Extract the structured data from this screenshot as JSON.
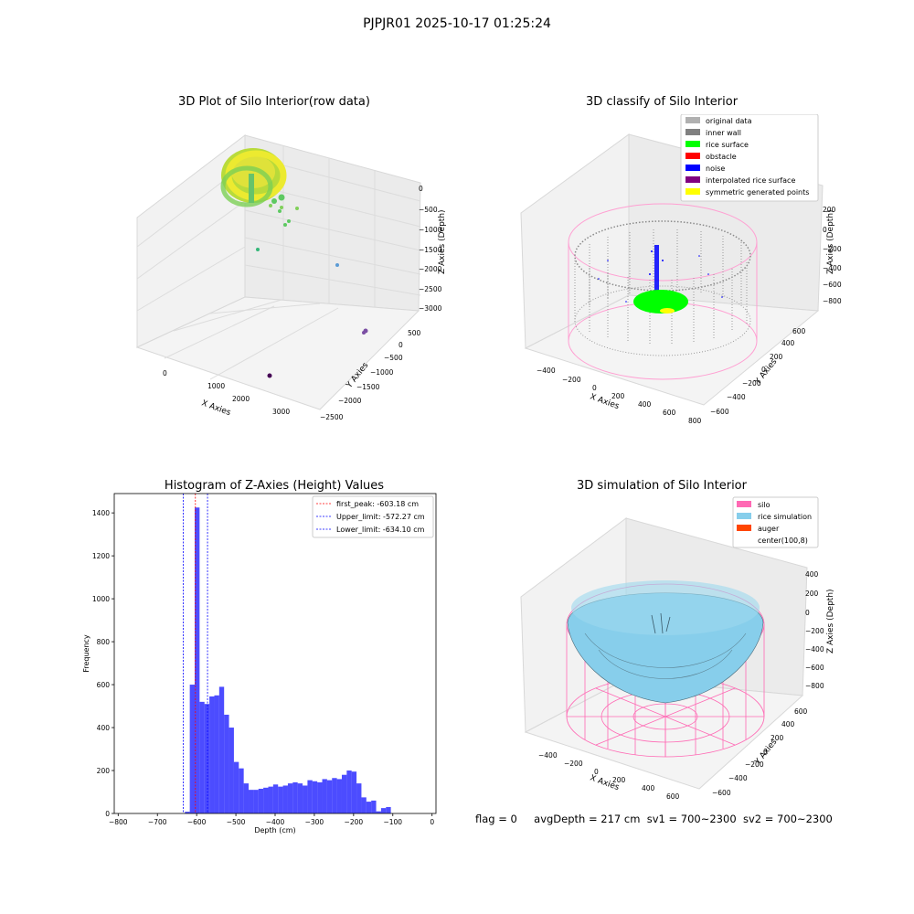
{
  "figure": {
    "suptitle": "PJPJR01 2025-10-17 01:25:24",
    "footer": {
      "flag": "flag = 0",
      "avg_depth": "avgDepth = 217 cm",
      "sv1": "sv1 = 700~2300",
      "sv2": "sv2 = 700~2300"
    }
  },
  "panels": {
    "raw": {
      "title": "3D Plot of Silo Interior(row data)",
      "xlabel": "X Axies",
      "ylabel": "Y Axies",
      "zlabel": "Z Axies (Depth)",
      "xticks": [
        "0",
        "1000",
        "2000",
        "3000"
      ],
      "yticks": [
        "500",
        "0",
        "−500",
        "−1000",
        "−1500",
        "−2000",
        "−2500"
      ],
      "zticks": [
        "0",
        "−500",
        "−1000",
        "−1500",
        "−2000",
        "−2500",
        "−3000"
      ]
    },
    "classify": {
      "title": "3D classify of Silo Interior",
      "xlabel": "X Axies",
      "ylabel": "Y Axies",
      "zlabel": "Z Axies (Depth)",
      "xticks": [
        "−400",
        "−200",
        "0",
        "200",
        "400",
        "600",
        "800"
      ],
      "yticks": [
        "600",
        "400",
        "200",
        "0",
        "−200",
        "−400",
        "−600"
      ],
      "zticks": [
        "200",
        "0",
        "−200",
        "−400",
        "−600",
        "−800"
      ],
      "legend": [
        {
          "label": "original data",
          "color": "#b0b0b0"
        },
        {
          "label": "inner wall",
          "color": "#808080"
        },
        {
          "label": "rice surface",
          "color": "#00ff00"
        },
        {
          "label": "obstacle",
          "color": "#ff0000"
        },
        {
          "label": "noise",
          "color": "#0000ff"
        },
        {
          "label": "interpolated rice surface",
          "color": "#800080"
        },
        {
          "label": "symmetric generated points",
          "color": "#ffff00"
        }
      ]
    },
    "simulation": {
      "title": "3D simulation of Silo Interior",
      "xlabel": "X Axies",
      "ylabel": "Y Axies",
      "zlabel": "Z Axies (Depth)",
      "xticks": [
        "−400",
        "−200",
        "0",
        "200",
        "400",
        "600"
      ],
      "yticks": [
        "600",
        "400",
        "200",
        "0",
        "−200",
        "−400",
        "−600"
      ],
      "zticks": [
        "400",
        "200",
        "0",
        "−200",
        "−400",
        "−600",
        "−800"
      ],
      "legend": [
        {
          "label": "silo",
          "color": "#ff69b4"
        },
        {
          "label": "rice simulation",
          "color": "#87ceeb"
        },
        {
          "label": "auger",
          "color": "#ff4500"
        },
        {
          "label": "center(100,8)",
          "color": ""
        }
      ]
    }
  },
  "chart_data": {
    "type": "bar",
    "title": "Histogram of Z-Axies (Height) Values",
    "xlabel": "Depth (cm)",
    "ylabel": "Frequency",
    "xlim": [
      -810,
      10
    ],
    "ylim": [
      0,
      1490
    ],
    "xticks": [
      -800,
      -700,
      -600,
      -500,
      -400,
      -300,
      -200,
      -100,
      0
    ],
    "yticks": [
      0,
      200,
      400,
      600,
      800,
      1000,
      1200,
      1400
    ],
    "bar_color": "#0000ff",
    "bins": [
      {
        "x0": -630.0,
        "x1": -617.5,
        "v": 8
      },
      {
        "x0": -617.5,
        "x1": -605.0,
        "v": 600
      },
      {
        "x0": -605.0,
        "x1": -592.5,
        "v": 1425
      },
      {
        "x0": -592.5,
        "x1": -580.0,
        "v": 520
      },
      {
        "x0": -580.0,
        "x1": -567.5,
        "v": 510
      },
      {
        "x0": -567.5,
        "x1": -555.0,
        "v": 545
      },
      {
        "x0": -555.0,
        "x1": -542.5,
        "v": 550
      },
      {
        "x0": -542.5,
        "x1": -530.0,
        "v": 590
      },
      {
        "x0": -530.0,
        "x1": -517.5,
        "v": 460
      },
      {
        "x0": -517.5,
        "x1": -505.0,
        "v": 400
      },
      {
        "x0": -505.0,
        "x1": -492.5,
        "v": 240
      },
      {
        "x0": -492.5,
        "x1": -480.0,
        "v": 210
      },
      {
        "x0": -480.0,
        "x1": -467.5,
        "v": 140
      },
      {
        "x0": -467.5,
        "x1": -455.0,
        "v": 110
      },
      {
        "x0": -455.0,
        "x1": -442.5,
        "v": 110
      },
      {
        "x0": -442.5,
        "x1": -430.0,
        "v": 115
      },
      {
        "x0": -430.0,
        "x1": -417.5,
        "v": 120
      },
      {
        "x0": -417.5,
        "x1": -405.0,
        "v": 125
      },
      {
        "x0": -405.0,
        "x1": -392.5,
        "v": 135
      },
      {
        "x0": -392.5,
        "x1": -380.0,
        "v": 125
      },
      {
        "x0": -380.0,
        "x1": -367.5,
        "v": 130
      },
      {
        "x0": -367.5,
        "x1": -355.0,
        "v": 140
      },
      {
        "x0": -355.0,
        "x1": -342.5,
        "v": 145
      },
      {
        "x0": -342.5,
        "x1": -330.0,
        "v": 140
      },
      {
        "x0": -330.0,
        "x1": -317.5,
        "v": 130
      },
      {
        "x0": -317.5,
        "x1": -305.0,
        "v": 155
      },
      {
        "x0": -305.0,
        "x1": -292.5,
        "v": 150
      },
      {
        "x0": -292.5,
        "x1": -280.0,
        "v": 145
      },
      {
        "x0": -280.0,
        "x1": -267.5,
        "v": 160
      },
      {
        "x0": -267.5,
        "x1": -255.0,
        "v": 155
      },
      {
        "x0": -255.0,
        "x1": -242.5,
        "v": 165
      },
      {
        "x0": -242.5,
        "x1": -230.0,
        "v": 160
      },
      {
        "x0": -230.0,
        "x1": -217.5,
        "v": 180
      },
      {
        "x0": -217.5,
        "x1": -205.0,
        "v": 200
      },
      {
        "x0": -205.0,
        "x1": -192.5,
        "v": 195
      },
      {
        "x0": -192.5,
        "x1": -180.0,
        "v": 140
      },
      {
        "x0": -180.0,
        "x1": -167.5,
        "v": 75
      },
      {
        "x0": -167.5,
        "x1": -155.0,
        "v": 55
      },
      {
        "x0": -155.0,
        "x1": -142.5,
        "v": 60
      },
      {
        "x0": -142.5,
        "x1": -130.0,
        "v": 10
      },
      {
        "x0": -130.0,
        "x1": -117.5,
        "v": 25
      },
      {
        "x0": -117.5,
        "x1": -105.0,
        "v": 30
      }
    ],
    "vlines": [
      {
        "name": "first_peak: -603.18 cm",
        "x": -603.18,
        "color": "#ff0000"
      },
      {
        "name": "Upper_limit: -572.27 cm",
        "x": -572.27,
        "color": "#0000ff"
      },
      {
        "name": "Lower_limit: -634.10 cm",
        "x": -634.1,
        "color": "#0000ff"
      }
    ]
  }
}
